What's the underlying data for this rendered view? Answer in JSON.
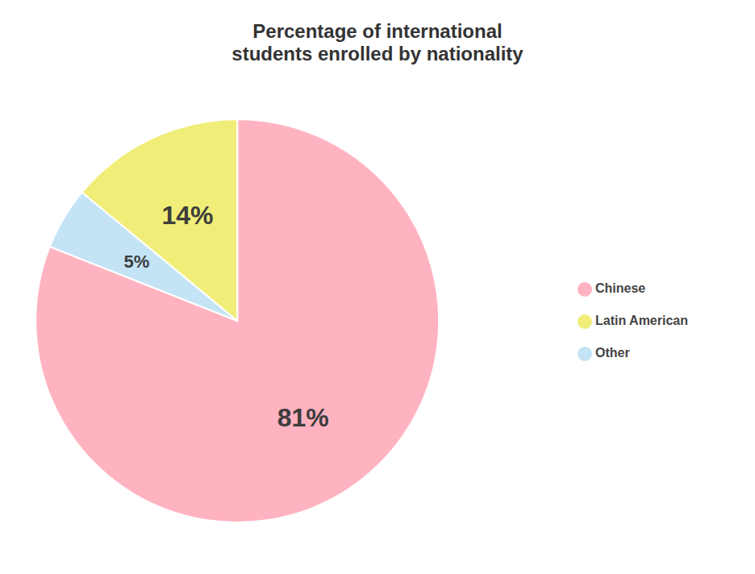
{
  "chart_data": {
    "type": "pie",
    "title": "Percentage of international\nstudents enrolled by nationality",
    "categories": [
      "Chinese",
      "Latin American",
      "Other"
    ],
    "values": [
      81,
      14,
      5
    ],
    "value_labels": [
      "81%",
      "14%",
      "5%"
    ],
    "colors": [
      "#FFB3C1",
      "#F0EE78",
      "#C4E4F5"
    ],
    "data_labels": true,
    "legend": "right"
  }
}
